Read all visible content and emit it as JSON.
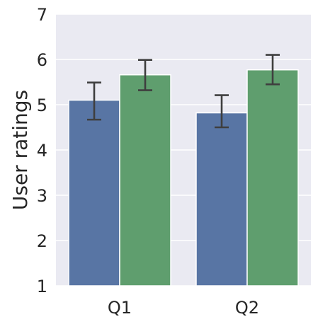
{
  "chart_data": {
    "type": "bar",
    "title": "",
    "xlabel": "",
    "ylabel": "User ratings",
    "categories": [
      "Q1",
      "Q2"
    ],
    "yticks": [
      "1",
      "2",
      "3",
      "4",
      "5",
      "6",
      "7"
    ],
    "ylim": [
      1,
      7
    ],
    "grid": true,
    "legend": "none",
    "series": [
      {
        "color": "#5875a4",
        "values": [
          5.1,
          4.82
        ],
        "err_low": [
          4.67,
          4.5
        ],
        "err_high": [
          5.49,
          5.21
        ]
      },
      {
        "color": "#5f9e6e",
        "values": [
          5.66,
          5.77
        ],
        "err_low": [
          5.32,
          5.45
        ],
        "err_high": [
          5.99,
          6.1
        ]
      }
    ]
  },
  "colors": {
    "background": "#ffffff",
    "plot_area": "#eaeaf2",
    "grid": "#ffffff",
    "errorbar": "#3f3f3f",
    "text": "#262626"
  }
}
